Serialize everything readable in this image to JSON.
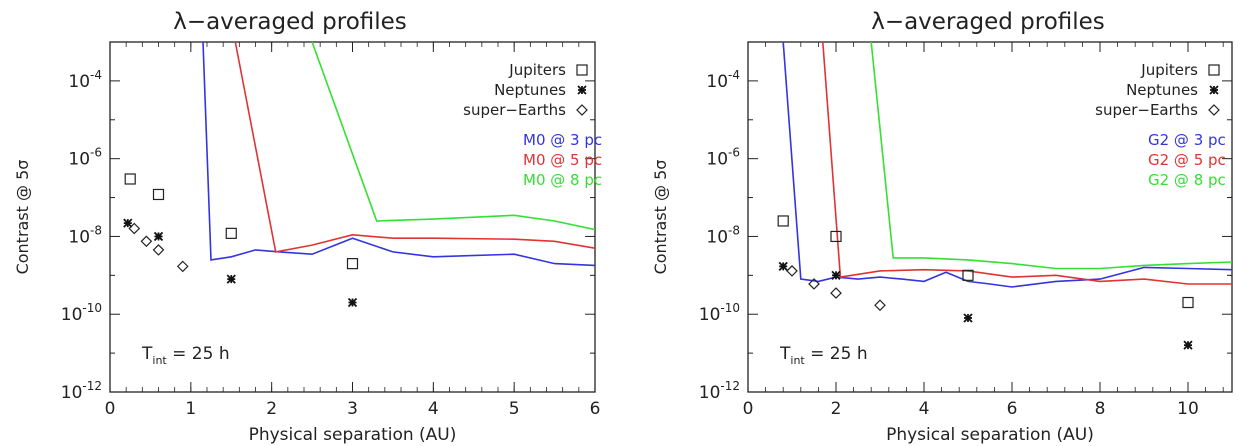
{
  "chart_data": [
    {
      "type": "line",
      "title": "λ−averaged profiles",
      "xlabel": "Physical separation (AU)",
      "ylabel": "Contrast @ 5σ",
      "xlim": [
        0,
        6
      ],
      "ylim": [
        1e-12,
        0.001
      ],
      "yscale": "log",
      "x_ticks": [
        0,
        1,
        2,
        3,
        4,
        5,
        6
      ],
      "y_ticks": [
        {
          "exp": "-12",
          "value": 1e-12
        },
        {
          "exp": "-10",
          "value": 1e-10
        },
        {
          "exp": "-8",
          "value": 1e-08
        },
        {
          "exp": "-6",
          "value": 1e-06
        },
        {
          "exp": "-4",
          "value": 0.0001
        }
      ],
      "annotation": {
        "main": "T",
        "sub": "int",
        "rest": " = 25 h"
      },
      "legend_markers": [
        {
          "label": "Jupiters",
          "marker": "square"
        },
        {
          "label": "Neptunes",
          "marker": "asterisk"
        },
        {
          "label": "super−Earths",
          "marker": "diamond"
        }
      ],
      "series": [
        {
          "name": "M0 @ 3 pc",
          "color": "#3434e0",
          "points": [
            [
              1.15,
              0.001
            ],
            [
              1.25,
              2.5e-09
            ],
            [
              1.5,
              3e-09
            ],
            [
              1.8,
              4.5e-09
            ],
            [
              2.1,
              4e-09
            ],
            [
              2.5,
              3.5e-09
            ],
            [
              3.0,
              9e-09
            ],
            [
              3.5,
              4e-09
            ],
            [
              4.0,
              3e-09
            ],
            [
              5.0,
              3.5e-09
            ],
            [
              5.5,
              2e-09
            ],
            [
              6.0,
              1.8e-09
            ]
          ]
        },
        {
          "name": "M0 @ 5 pc",
          "color": "#e03434",
          "points": [
            [
              1.55,
              0.001
            ],
            [
              2.05,
              4e-09
            ],
            [
              2.5,
              6e-09
            ],
            [
              3.0,
              1.1e-08
            ],
            [
              3.5,
              9e-09
            ],
            [
              4.0,
              9e-09
            ],
            [
              5.0,
              8.5e-09
            ],
            [
              5.5,
              7.5e-09
            ],
            [
              6.0,
              5e-09
            ]
          ]
        },
        {
          "name": "M0 @ 8 pc",
          "color": "#34e034",
          "points": [
            [
              2.5,
              0.001
            ],
            [
              3.3,
              2.5e-08
            ],
            [
              4.0,
              2.8e-08
            ],
            [
              5.0,
              3.5e-08
            ],
            [
              5.5,
              2.5e-08
            ],
            [
              6.0,
              1.5e-08
            ]
          ]
        }
      ],
      "markers": {
        "jupiters": [
          [
            0.25,
            3e-07
          ],
          [
            0.6,
            1.2e-07
          ],
          [
            1.5,
            1.2e-08
          ],
          [
            3.0,
            2e-09
          ]
        ],
        "neptunes": [
          [
            0.22,
            2.2e-08
          ],
          [
            0.6,
            1e-08
          ],
          [
            1.5,
            8e-10
          ],
          [
            3.0,
            2e-10
          ]
        ],
        "super_earths": [
          [
            0.3,
            1.6e-08
          ],
          [
            0.45,
            7.5e-09
          ],
          [
            0.6,
            4.5e-09
          ],
          [
            0.9,
            1.7e-09
          ]
        ]
      }
    },
    {
      "type": "line",
      "title": "λ−averaged profiles",
      "xlabel": "Physical separation (AU)",
      "ylabel": "Contrast @ 5σ",
      "xlim": [
        0,
        11
      ],
      "ylim": [
        1e-12,
        0.001
      ],
      "yscale": "log",
      "x_ticks": [
        0,
        2,
        4,
        6,
        8,
        10
      ],
      "y_ticks": [
        {
          "exp": "-12",
          "value": 1e-12
        },
        {
          "exp": "-10",
          "value": 1e-10
        },
        {
          "exp": "-8",
          "value": 1e-08
        },
        {
          "exp": "-6",
          "value": 1e-06
        },
        {
          "exp": "-4",
          "value": 0.0001
        }
      ],
      "annotation": {
        "main": "T",
        "sub": "int",
        "rest": " = 25 h"
      },
      "legend_markers": [
        {
          "label": "Jupiters",
          "marker": "square"
        },
        {
          "label": "Neptunes",
          "marker": "asterisk"
        },
        {
          "label": "super−Earths",
          "marker": "diamond"
        }
      ],
      "series": [
        {
          "name": "G2 @ 3 pc",
          "color": "#3434e0",
          "points": [
            [
              0.8,
              0.001
            ],
            [
              1.2,
              8e-10
            ],
            [
              1.6,
              7e-10
            ],
            [
              2.0,
              9e-10
            ],
            [
              2.5,
              8e-10
            ],
            [
              3.0,
              9e-10
            ],
            [
              3.5,
              8e-10
            ],
            [
              4.0,
              7e-10
            ],
            [
              4.5,
              1.2e-09
            ],
            [
              5.0,
              7e-10
            ],
            [
              5.5,
              6e-10
            ],
            [
              6.0,
              5e-10
            ],
            [
              7.0,
              7e-10
            ],
            [
              8.0,
              8e-10
            ],
            [
              9.0,
              1.6e-09
            ],
            [
              10.0,
              1.5e-09
            ],
            [
              11.0,
              1.4e-09
            ]
          ]
        },
        {
          "name": "G2 @ 5 pc",
          "color": "#e03434",
          "points": [
            [
              1.7,
              0.001
            ],
            [
              2.1,
              9e-10
            ],
            [
              3.0,
              1.3e-09
            ],
            [
              4.0,
              1.4e-09
            ],
            [
              5.0,
              1.3e-09
            ],
            [
              6.0,
              9e-10
            ],
            [
              7.0,
              1e-09
            ],
            [
              8.0,
              7e-10
            ],
            [
              9.0,
              8e-10
            ],
            [
              10.0,
              6e-10
            ],
            [
              11.0,
              6e-10
            ]
          ]
        },
        {
          "name": "G2 @ 8 pc",
          "color": "#34e034",
          "points": [
            [
              2.8,
              0.001
            ],
            [
              3.3,
              2.8e-09
            ],
            [
              4.0,
              2.8e-09
            ],
            [
              5.0,
              2.5e-09
            ],
            [
              6.0,
              2e-09
            ],
            [
              7.0,
              1.5e-09
            ],
            [
              8.0,
              1.5e-09
            ],
            [
              9.0,
              1.8e-09
            ],
            [
              10.0,
              2e-09
            ],
            [
              11.0,
              2.2e-09
            ]
          ]
        }
      ],
      "markers": {
        "jupiters": [
          [
            0.8,
            2.5e-08
          ],
          [
            2.0,
            1e-08
          ],
          [
            5.0,
            1e-09
          ],
          [
            10.0,
            2e-10
          ]
        ],
        "neptunes": [
          [
            0.8,
            1.7e-09
          ],
          [
            2.0,
            1e-09
          ],
          [
            5.0,
            8e-11
          ],
          [
            10.0,
            1.6e-11
          ]
        ],
        "super_earths": [
          [
            1.0,
            1.3e-09
          ],
          [
            1.5,
            6e-10
          ],
          [
            2.0,
            3.5e-10
          ],
          [
            3.0,
            1.7e-10
          ]
        ]
      }
    }
  ]
}
